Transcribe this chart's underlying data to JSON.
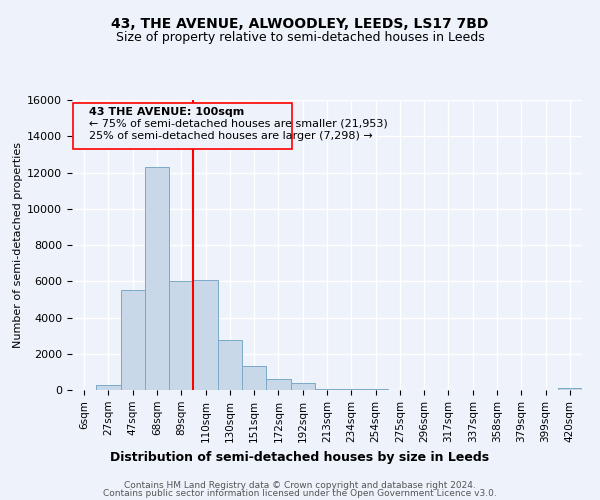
{
  "title": "43, THE AVENUE, ALWOODLEY, LEEDS, LS17 7BD",
  "subtitle": "Size of property relative to semi-detached houses in Leeds",
  "xlabel": "Distribution of semi-detached houses by size in Leeds",
  "ylabel": "Number of semi-detached properties",
  "footnote1": "Contains HM Land Registry data © Crown copyright and database right 2024.",
  "footnote2": "Contains public sector information licensed under the Open Government Licence v3.0.",
  "bar_labels": [
    "6sqm",
    "27sqm",
    "47sqm",
    "68sqm",
    "89sqm",
    "110sqm",
    "130sqm",
    "151sqm",
    "172sqm",
    "192sqm",
    "213sqm",
    "234sqm",
    "254sqm",
    "275sqm",
    "296sqm",
    "317sqm",
    "337sqm",
    "358sqm",
    "379sqm",
    "399sqm",
    "420sqm"
  ],
  "bar_values": [
    0,
    280,
    5500,
    12300,
    6000,
    6050,
    2750,
    1320,
    580,
    400,
    80,
    75,
    60,
    0,
    0,
    0,
    0,
    0,
    0,
    0,
    90
  ],
  "bar_color": "#c8d8e8",
  "bar_edgecolor": "#7aaac8",
  "vline_color": "red",
  "annotation_text_line1": "43 THE AVENUE: 100sqm",
  "annotation_text_line2": "← 75% of semi-detached houses are smaller (21,953)",
  "annotation_text_line3": "25% of semi-detached houses are larger (7,298) →",
  "ylim": [
    0,
    16000
  ],
  "yticks": [
    0,
    2000,
    4000,
    6000,
    8000,
    10000,
    12000,
    14000,
    16000
  ],
  "bg_color": "#eef2fa",
  "grid_color": "white",
  "title_fontsize": 10,
  "subtitle_fontsize": 9,
  "figwidth": 6.0,
  "figheight": 5.0
}
